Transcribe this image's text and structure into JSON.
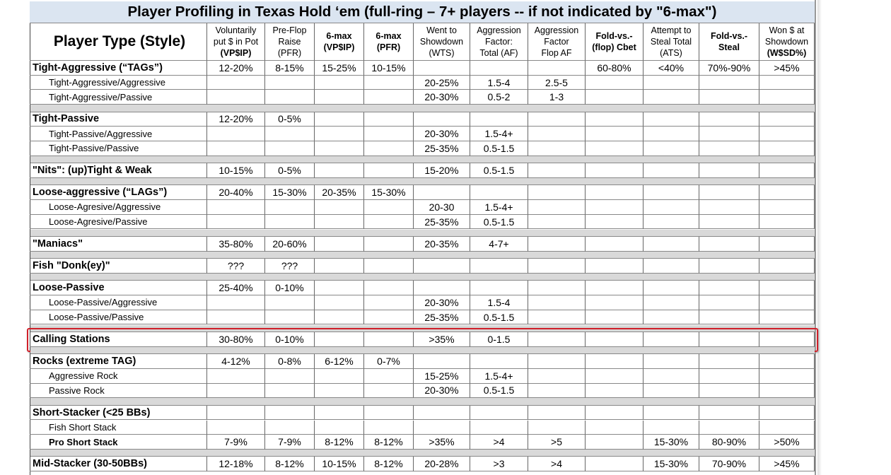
{
  "title": "Player Profiling in Texas Hold ‘em (full-ring – 7+ players -- if not indicated by \"6-max\")",
  "header": {
    "first": "Player Type (Style)",
    "columns": [
      {
        "lines": [
          "Voluntarily",
          "put $ in Pot",
          "(VP$IP)"
        ]
      },
      {
        "lines": [
          "Pre-Flop",
          "Raise",
          "(PFR)"
        ]
      },
      {
        "lines": [
          "6-max",
          "(VP$IP)"
        ]
      },
      {
        "lines": [
          "6-max",
          "(PFR)"
        ]
      },
      {
        "lines": [
          "Went to",
          "Showdown",
          "(WTS)"
        ]
      },
      {
        "lines": [
          "Aggression",
          "Factor:",
          "Total (AF)"
        ]
      },
      {
        "lines": [
          "Aggression",
          "Factor",
          "Flop AF"
        ]
      },
      {
        "lines": [
          "Fold-vs.-",
          "(flop) Cbet"
        ]
      },
      {
        "lines": [
          "Attempt to",
          "Steal Total",
          "(ATS)"
        ]
      },
      {
        "lines": [
          "Fold-vs.-",
          "Steal"
        ]
      },
      {
        "lines": [
          "Won $ at",
          "Showdown",
          "(W$SD%)"
        ]
      }
    ]
  },
  "groups": [
    {
      "rows": [
        {
          "label": "Tight-Aggressive (“TAGs”)",
          "cells": [
            "12-20%",
            "8-15%",
            "15-25%",
            "10-15%",
            null,
            null,
            null,
            "60-80%",
            "<40%",
            "70%-90%",
            ">45%"
          ]
        },
        {
          "label": "Tight-Aggressive/Aggressive",
          "cells": [
            null,
            null,
            null,
            null,
            "20-25%",
            "1.5-4",
            "2.5-5",
            null,
            null,
            null,
            null
          ]
        },
        {
          "label": "Tight-Aggressive/Passive",
          "cells": [
            null,
            null,
            null,
            null,
            "20-30%",
            "0.5-2",
            "1-3",
            null,
            null,
            null,
            null
          ]
        }
      ]
    },
    {
      "rows": [
        {
          "label": "Tight-Passive",
          "cells": [
            "12-20%",
            "0-5%",
            null,
            null,
            null,
            null,
            null,
            null,
            null,
            null,
            null
          ]
        },
        {
          "label": "Tight-Passive/Aggressive",
          "cells": [
            null,
            null,
            null,
            null,
            "20-30%",
            "1.5-4+",
            null,
            null,
            null,
            null,
            null
          ]
        },
        {
          "label": "Tight-Passive/Passive",
          "cells": [
            null,
            null,
            null,
            null,
            "25-35%",
            "0.5-1.5",
            null,
            null,
            null,
            null,
            null
          ]
        }
      ]
    },
    {
      "rows": [
        {
          "label": "\"Nits\": (up)Tight & Weak",
          "cells": [
            "10-15%",
            "0-5%",
            null,
            null,
            "15-20%",
            "0.5-1.5",
            null,
            null,
            null,
            null,
            null
          ]
        }
      ]
    },
    {
      "rows": [
        {
          "label": "Loose-aggressive (“LAGs”)",
          "cells": [
            "20-40%",
            "15-30%",
            "20-35%",
            "15-30%",
            null,
            null,
            null,
            null,
            null,
            null,
            null
          ]
        },
        {
          "label": "Loose-Agresive/Aggressive",
          "cells": [
            null,
            null,
            null,
            null,
            "20-30",
            "1.5-4+",
            null,
            null,
            null,
            null,
            null
          ]
        },
        {
          "label": "Loose-Agresive/Passive",
          "cells": [
            null,
            null,
            null,
            null,
            "25-35%",
            "0.5-1.5",
            null,
            null,
            null,
            null,
            null
          ]
        }
      ]
    },
    {
      "rows": [
        {
          "label": "\"Maniacs\"",
          "cells": [
            "35-80%",
            "20-60%",
            null,
            null,
            "20-35%",
            "4-7+",
            null,
            null,
            null,
            null,
            null
          ]
        }
      ]
    },
    {
      "rows": [
        {
          "label": "Fish \"Donk(ey)\"",
          "cells": [
            "???",
            "???",
            null,
            null,
            null,
            null,
            null,
            null,
            null,
            null,
            null
          ]
        }
      ]
    },
    {
      "rows": [
        {
          "label": "Loose-Passive",
          "cells": [
            "25-40%",
            "0-10%",
            null,
            null,
            null,
            null,
            null,
            null,
            null,
            null,
            null
          ]
        },
        {
          "label": "Loose-Passive/Aggressive",
          "cells": [
            null,
            null,
            null,
            null,
            "20-30%",
            "1.5-4",
            null,
            null,
            null,
            null,
            null
          ]
        },
        {
          "label": "Loose-Passive/Passive",
          "cells": [
            null,
            null,
            null,
            null,
            "25-35%",
            "0.5-1.5",
            null,
            null,
            null,
            null,
            null
          ]
        }
      ]
    },
    {
      "rows": [
        {
          "label": "Calling Stations",
          "cells": [
            "30-80%",
            "0-10%",
            null,
            null,
            ">35%",
            "0-1.5",
            null,
            null,
            null,
            null,
            null
          ]
        }
      ]
    },
    {
      "rows": [
        {
          "label": "Rocks (extreme TAG)",
          "cells": [
            "4-12%",
            "0-8%",
            "6-12%",
            "0-7%",
            null,
            null,
            null,
            null,
            null,
            null,
            null
          ]
        },
        {
          "label": "Aggressive Rock",
          "cells": [
            null,
            null,
            null,
            null,
            "15-25%",
            "1.5-4+",
            null,
            null,
            null,
            null,
            null
          ]
        },
        {
          "label": "Passive Rock",
          "cells": [
            null,
            null,
            null,
            null,
            "20-30%",
            "0.5-1.5",
            null,
            null,
            null,
            null,
            null
          ]
        }
      ]
    },
    {
      "rows": [
        {
          "label": "Short-Stacker (<25 BBs)",
          "cells": [
            null,
            null,
            null,
            null,
            null,
            null,
            null,
            null,
            null,
            null,
            null
          ]
        },
        {
          "label": "Fish Short Stack",
          "cells": [
            null,
            null,
            null,
            null,
            null,
            null,
            null,
            null,
            null,
            null,
            null
          ]
        },
        {
          "label": "Pro Short Stack",
          "cells": [
            "7-9%",
            "7-9%",
            "8-12%",
            "8-12%",
            ">35%",
            ">4",
            ">5",
            null,
            "15-30%",
            "80-90%",
            ">50%"
          ]
        }
      ]
    },
    {
      "rows": [
        {
          "label": "Mid-Stacker (30-50BBs)",
          "cells": [
            "12-18%",
            "8-12%",
            "10-15%",
            "8-12%",
            "20-28%",
            ">3",
            ">4",
            null,
            "15-30%",
            "70-90%",
            ">45%"
          ]
        }
      ]
    }
  ]
}
